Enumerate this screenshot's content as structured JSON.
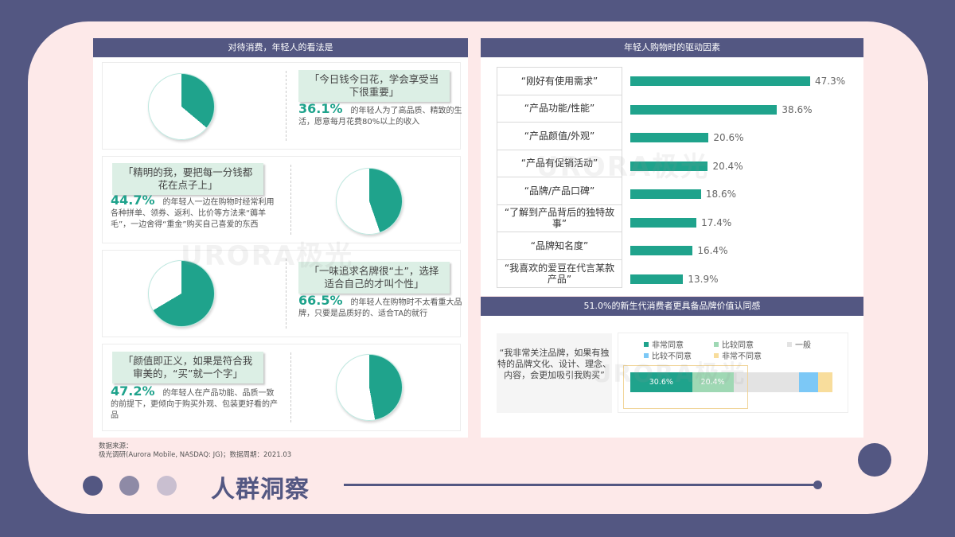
{
  "left_panel": {
    "title": "对待消费，年轻人的看法是",
    "blocks": [
      {
        "quote": "「今日钱今日花，学会享受当下很重要」",
        "pct": "36.1%",
        "text": "的年轻人为了高品质、精致的生活，愿意每月花费80%以上的收入",
        "value": 36.1
      },
      {
        "quote": "「精明的我，要把每一分钱都花在点子上」",
        "pct": "44.7%",
        "text": "的年轻人一边在购物时经常利用各种拼单、领券、返利、比价等方法来“薅羊毛”，一边舍得“重金”购买自己喜爱的东西",
        "value": 44.7
      },
      {
        "quote": "「一味追求名牌很“土”，选择适合自己的才叫个性」",
        "pct": "66.5%",
        "text": "的年轻人在购物时不太看重大品牌，只要是品质好的、适合TA的就行",
        "value": 66.5
      },
      {
        "quote": "「颜值即正义，如果是符合我审美的，“买”就一个字」",
        "pct": "47.2%",
        "text": "的年轻人在产品功能、品质一致的前提下，更倾向于购买外观、包装更好看的产品",
        "value": 47.2
      }
    ]
  },
  "source": {
    "line1": "数据来源：",
    "line2": "极光调研(Aurora Mobile, NASDAQ: JG)；数据周期：2021.03"
  },
  "right_top": {
    "title": "年轻人购物时的驱动因素"
  },
  "right_bottom": {
    "title": "51.0%的新生代消费者更具备品牌价值认同感",
    "quote": "“我非常关注品牌，如果有独特的品牌文化、设计、理念、内容，会更加吸引我购买”",
    "legend": [
      {
        "label": "非常同意",
        "color": "#1fa38c"
      },
      {
        "label": "比较同意",
        "color": "#9fd8b4"
      },
      {
        "label": "一般",
        "color": "#e3e3e3"
      },
      {
        "label": "比较不同意",
        "color": "#7cc8f6"
      },
      {
        "label": "非常不同意",
        "color": "#f8dd9c"
      }
    ],
    "seg_labels": [
      "30.6%",
      "20.4%"
    ]
  },
  "footer": {
    "title": "人群洞察"
  },
  "watermark": "URORA极光",
  "colors": {
    "primary": "#535782",
    "accent": "#1fa38c",
    "card_bg": "#fde9e9"
  },
  "chart_data": [
    {
      "type": "pie",
      "title": "对待消费，年轻人的看法是",
      "categories": [
        "今日钱今日花，学会享受当下很重要",
        "精明的我，要把每一分钱都花在点子上",
        "一味追求名牌很“土”，选择适合自己的才叫个性",
        "颜值即正义，如果是符合我审美的，“买”就一个字"
      ],
      "values": [
        36.1,
        44.7,
        66.5,
        47.2
      ]
    },
    {
      "type": "bar",
      "orientation": "horizontal",
      "title": "年轻人购物时的驱动因素",
      "categories": [
        "“刚好有使用需求”",
        "“产品功能/性能”",
        "“产品颜值/外观”",
        "“产品有促销活动”",
        "“品牌/产品口碑”",
        "“了解到产品背后的独特故事”",
        "“品牌知名度”",
        "“我喜欢的爱豆在代言某款产品”"
      ],
      "values": [
        47.3,
        38.6,
        20.6,
        20.4,
        18.6,
        17.4,
        16.4,
        13.9
      ],
      "labels": [
        "47.3%",
        "38.6%",
        "20.6%",
        "20.4%",
        "18.6%",
        "17.4%",
        "16.4%",
        "13.9%"
      ],
      "xlabel": "",
      "ylabel": ""
    },
    {
      "type": "bar",
      "orientation": "horizontal",
      "stacked": true,
      "title": "51.0%的新生代消费者更具备品牌价值认同感",
      "categories": [
        "我非常关注品牌，如果有独特的品牌文化、设计、理念、内容，会更加吸引我购买"
      ],
      "series": [
        {
          "name": "非常同意",
          "values": [
            30.6
          ]
        },
        {
          "name": "比较同意",
          "values": [
            20.4
          ]
        },
        {
          "name": "一般",
          "values": [
            32.5
          ]
        },
        {
          "name": "比较不同意",
          "values": [
            9.3
          ]
        },
        {
          "name": "非常不同意",
          "values": [
            7.2
          ]
        }
      ],
      "legend_position": "top"
    }
  ]
}
